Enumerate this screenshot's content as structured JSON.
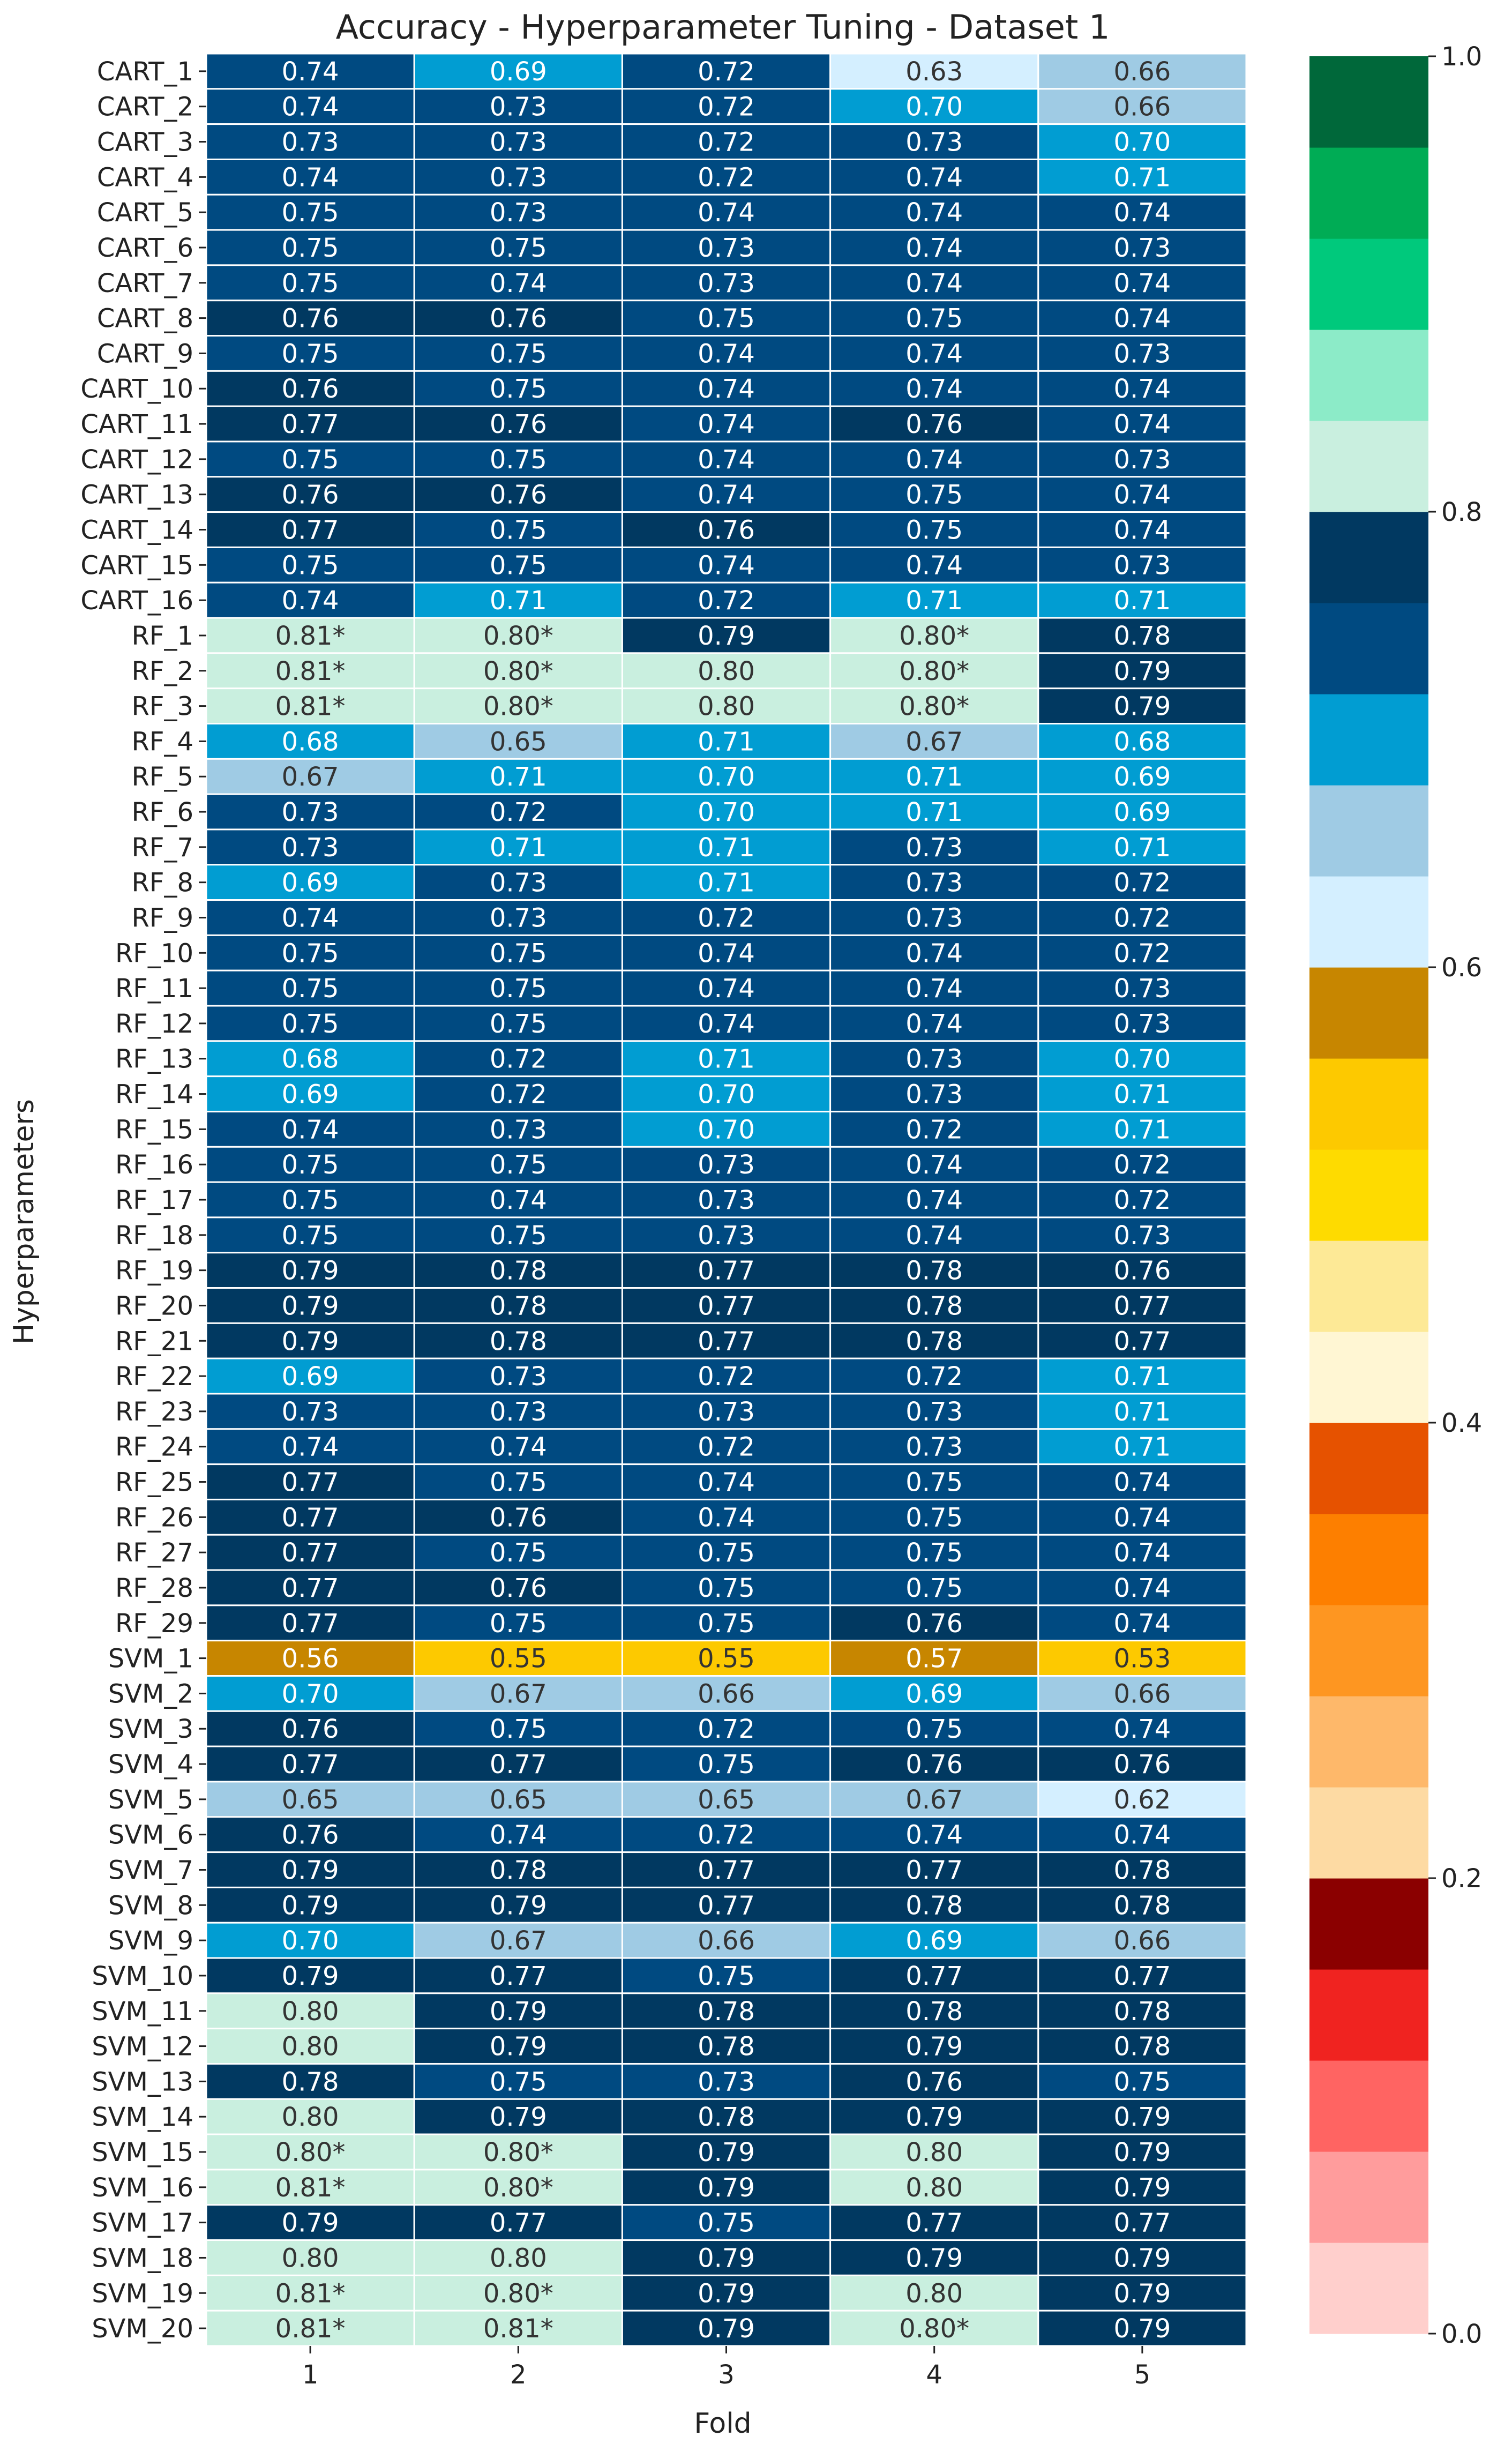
{
  "chart_data": {
    "type": "heatmap",
    "title": "Accuracy - Hyperparameter Tuning - Dataset 1",
    "xlabel": "Fold",
    "ylabel": "Hyperparameters",
    "columns": [
      "1",
      "2",
      "3",
      "4",
      "5"
    ],
    "rows": [
      "CART_1",
      "CART_2",
      "CART_3",
      "CART_4",
      "CART_5",
      "CART_6",
      "CART_7",
      "CART_8",
      "CART_9",
      "CART_10",
      "CART_11",
      "CART_12",
      "CART_13",
      "CART_14",
      "CART_15",
      "CART_16",
      "RF_1",
      "RF_2",
      "RF_3",
      "RF_4",
      "RF_5",
      "RF_6",
      "RF_7",
      "RF_8",
      "RF_9",
      "RF_10",
      "RF_11",
      "RF_12",
      "RF_13",
      "RF_14",
      "RF_15",
      "RF_16",
      "RF_17",
      "RF_18",
      "RF_19",
      "RF_20",
      "RF_21",
      "RF_22",
      "RF_23",
      "RF_24",
      "RF_25",
      "RF_26",
      "RF_27",
      "RF_28",
      "RF_29",
      "SVM_1",
      "SVM_2",
      "SVM_3",
      "SVM_4",
      "SVM_5",
      "SVM_6",
      "SVM_7",
      "SVM_8",
      "SVM_9",
      "SVM_10",
      "SVM_11",
      "SVM_12",
      "SVM_13",
      "SVM_14",
      "SVM_15",
      "SVM_16",
      "SVM_17",
      "SVM_18",
      "SVM_19",
      "SVM_20"
    ],
    "values": [
      [
        0.74,
        0.69,
        0.72,
        0.63,
        0.66
      ],
      [
        0.74,
        0.73,
        0.72,
        0.7,
        0.66
      ],
      [
        0.73,
        0.73,
        0.72,
        0.73,
        0.7
      ],
      [
        0.74,
        0.73,
        0.72,
        0.74,
        0.71
      ],
      [
        0.75,
        0.73,
        0.74,
        0.74,
        0.74
      ],
      [
        0.75,
        0.75,
        0.73,
        0.74,
        0.73
      ],
      [
        0.75,
        0.74,
        0.73,
        0.74,
        0.74
      ],
      [
        0.76,
        0.76,
        0.75,
        0.75,
        0.74
      ],
      [
        0.75,
        0.75,
        0.74,
        0.74,
        0.73
      ],
      [
        0.76,
        0.75,
        0.74,
        0.74,
        0.74
      ],
      [
        0.77,
        0.76,
        0.74,
        0.76,
        0.74
      ],
      [
        0.75,
        0.75,
        0.74,
        0.74,
        0.73
      ],
      [
        0.76,
        0.76,
        0.74,
        0.75,
        0.74
      ],
      [
        0.77,
        0.75,
        0.76,
        0.75,
        0.74
      ],
      [
        0.75,
        0.75,
        0.74,
        0.74,
        0.73
      ],
      [
        0.74,
        0.71,
        0.72,
        0.71,
        0.71
      ],
      [
        0.81,
        0.8,
        0.79,
        0.8,
        0.78
      ],
      [
        0.81,
        0.8,
        0.8,
        0.8,
        0.79
      ],
      [
        0.81,
        0.8,
        0.8,
        0.8,
        0.79
      ],
      [
        0.68,
        0.65,
        0.71,
        0.67,
        0.68
      ],
      [
        0.67,
        0.71,
        0.7,
        0.71,
        0.69
      ],
      [
        0.73,
        0.72,
        0.7,
        0.71,
        0.69
      ],
      [
        0.73,
        0.71,
        0.71,
        0.73,
        0.71
      ],
      [
        0.69,
        0.73,
        0.71,
        0.73,
        0.72
      ],
      [
        0.74,
        0.73,
        0.72,
        0.73,
        0.72
      ],
      [
        0.75,
        0.75,
        0.74,
        0.74,
        0.72
      ],
      [
        0.75,
        0.75,
        0.74,
        0.74,
        0.73
      ],
      [
        0.75,
        0.75,
        0.74,
        0.74,
        0.73
      ],
      [
        0.68,
        0.72,
        0.71,
        0.73,
        0.7
      ],
      [
        0.69,
        0.72,
        0.7,
        0.73,
        0.71
      ],
      [
        0.74,
        0.73,
        0.7,
        0.72,
        0.71
      ],
      [
        0.75,
        0.75,
        0.73,
        0.74,
        0.72
      ],
      [
        0.75,
        0.74,
        0.73,
        0.74,
        0.72
      ],
      [
        0.75,
        0.75,
        0.73,
        0.74,
        0.73
      ],
      [
        0.79,
        0.78,
        0.77,
        0.78,
        0.76
      ],
      [
        0.79,
        0.78,
        0.77,
        0.78,
        0.77
      ],
      [
        0.79,
        0.78,
        0.77,
        0.78,
        0.77
      ],
      [
        0.69,
        0.73,
        0.72,
        0.72,
        0.71
      ],
      [
        0.73,
        0.73,
        0.73,
        0.73,
        0.71
      ],
      [
        0.74,
        0.74,
        0.72,
        0.73,
        0.71
      ],
      [
        0.77,
        0.75,
        0.74,
        0.75,
        0.74
      ],
      [
        0.77,
        0.76,
        0.74,
        0.75,
        0.74
      ],
      [
        0.77,
        0.75,
        0.75,
        0.75,
        0.74
      ],
      [
        0.77,
        0.76,
        0.75,
        0.75,
        0.74
      ],
      [
        0.77,
        0.75,
        0.75,
        0.76,
        0.74
      ],
      [
        0.56,
        0.55,
        0.55,
        0.57,
        0.53
      ],
      [
        0.7,
        0.67,
        0.66,
        0.69,
        0.66
      ],
      [
        0.76,
        0.75,
        0.72,
        0.75,
        0.74
      ],
      [
        0.77,
        0.77,
        0.75,
        0.76,
        0.76
      ],
      [
        0.65,
        0.65,
        0.65,
        0.67,
        0.62
      ],
      [
        0.76,
        0.74,
        0.72,
        0.74,
        0.74
      ],
      [
        0.79,
        0.78,
        0.77,
        0.77,
        0.78
      ],
      [
        0.79,
        0.79,
        0.77,
        0.78,
        0.78
      ],
      [
        0.7,
        0.67,
        0.66,
        0.69,
        0.66
      ],
      [
        0.79,
        0.77,
        0.75,
        0.77,
        0.77
      ],
      [
        0.8,
        0.79,
        0.78,
        0.78,
        0.78
      ],
      [
        0.8,
        0.79,
        0.78,
        0.79,
        0.78
      ],
      [
        0.78,
        0.75,
        0.73,
        0.76,
        0.75
      ],
      [
        0.8,
        0.79,
        0.78,
        0.79,
        0.79
      ],
      [
        0.8,
        0.8,
        0.79,
        0.8,
        0.79
      ],
      [
        0.81,
        0.8,
        0.79,
        0.8,
        0.79
      ],
      [
        0.79,
        0.77,
        0.75,
        0.77,
        0.77
      ],
      [
        0.8,
        0.8,
        0.79,
        0.79,
        0.79
      ],
      [
        0.81,
        0.8,
        0.79,
        0.8,
        0.79
      ],
      [
        0.81,
        0.81,
        0.79,
        0.8,
        0.79
      ]
    ],
    "labels": [
      [
        "0.74",
        "0.69",
        "0.72",
        "0.63",
        "0.66"
      ],
      [
        "0.74",
        "0.73",
        "0.72",
        "0.70",
        "0.66"
      ],
      [
        "0.73",
        "0.73",
        "0.72",
        "0.73",
        "0.70"
      ],
      [
        "0.74",
        "0.73",
        "0.72",
        "0.74",
        "0.71"
      ],
      [
        "0.75",
        "0.73",
        "0.74",
        "0.74",
        "0.74"
      ],
      [
        "0.75",
        "0.75",
        "0.73",
        "0.74",
        "0.73"
      ],
      [
        "0.75",
        "0.74",
        "0.73",
        "0.74",
        "0.74"
      ],
      [
        "0.76",
        "0.76",
        "0.75",
        "0.75",
        "0.74"
      ],
      [
        "0.75",
        "0.75",
        "0.74",
        "0.74",
        "0.73"
      ],
      [
        "0.76",
        "0.75",
        "0.74",
        "0.74",
        "0.74"
      ],
      [
        "0.77",
        "0.76",
        "0.74",
        "0.76",
        "0.74"
      ],
      [
        "0.75",
        "0.75",
        "0.74",
        "0.74",
        "0.73"
      ],
      [
        "0.76",
        "0.76",
        "0.74",
        "0.75",
        "0.74"
      ],
      [
        "0.77",
        "0.75",
        "0.76",
        "0.75",
        "0.74"
      ],
      [
        "0.75",
        "0.75",
        "0.74",
        "0.74",
        "0.73"
      ],
      [
        "0.74",
        "0.71",
        "0.72",
        "0.71",
        "0.71"
      ],
      [
        "0.81*",
        "0.80*",
        "0.79",
        "0.80*",
        "0.78"
      ],
      [
        "0.81*",
        "0.80*",
        "0.80",
        "0.80*",
        "0.79"
      ],
      [
        "0.81*",
        "0.80*",
        "0.80",
        "0.80*",
        "0.79"
      ],
      [
        "0.68",
        "0.65",
        "0.71",
        "0.67",
        "0.68"
      ],
      [
        "0.67",
        "0.71",
        "0.70",
        "0.71",
        "0.69"
      ],
      [
        "0.73",
        "0.72",
        "0.70",
        "0.71",
        "0.69"
      ],
      [
        "0.73",
        "0.71",
        "0.71",
        "0.73",
        "0.71"
      ],
      [
        "0.69",
        "0.73",
        "0.71",
        "0.73",
        "0.72"
      ],
      [
        "0.74",
        "0.73",
        "0.72",
        "0.73",
        "0.72"
      ],
      [
        "0.75",
        "0.75",
        "0.74",
        "0.74",
        "0.72"
      ],
      [
        "0.75",
        "0.75",
        "0.74",
        "0.74",
        "0.73"
      ],
      [
        "0.75",
        "0.75",
        "0.74",
        "0.74",
        "0.73"
      ],
      [
        "0.68",
        "0.72",
        "0.71",
        "0.73",
        "0.70"
      ],
      [
        "0.69",
        "0.72",
        "0.70",
        "0.73",
        "0.71"
      ],
      [
        "0.74",
        "0.73",
        "0.70",
        "0.72",
        "0.71"
      ],
      [
        "0.75",
        "0.75",
        "0.73",
        "0.74",
        "0.72"
      ],
      [
        "0.75",
        "0.74",
        "0.73",
        "0.74",
        "0.72"
      ],
      [
        "0.75",
        "0.75",
        "0.73",
        "0.74",
        "0.73"
      ],
      [
        "0.79",
        "0.78",
        "0.77",
        "0.78",
        "0.76"
      ],
      [
        "0.79",
        "0.78",
        "0.77",
        "0.78",
        "0.77"
      ],
      [
        "0.79",
        "0.78",
        "0.77",
        "0.78",
        "0.77"
      ],
      [
        "0.69",
        "0.73",
        "0.72",
        "0.72",
        "0.71"
      ],
      [
        "0.73",
        "0.73",
        "0.73",
        "0.73",
        "0.71"
      ],
      [
        "0.74",
        "0.74",
        "0.72",
        "0.73",
        "0.71"
      ],
      [
        "0.77",
        "0.75",
        "0.74",
        "0.75",
        "0.74"
      ],
      [
        "0.77",
        "0.76",
        "0.74",
        "0.75",
        "0.74"
      ],
      [
        "0.77",
        "0.75",
        "0.75",
        "0.75",
        "0.74"
      ],
      [
        "0.77",
        "0.76",
        "0.75",
        "0.75",
        "0.74"
      ],
      [
        "0.77",
        "0.75",
        "0.75",
        "0.76",
        "0.74"
      ],
      [
        "0.56",
        "0.55",
        "0.55",
        "0.57",
        "0.53"
      ],
      [
        "0.70",
        "0.67",
        "0.66",
        "0.69",
        "0.66"
      ],
      [
        "0.76",
        "0.75",
        "0.72",
        "0.75",
        "0.74"
      ],
      [
        "0.77",
        "0.77",
        "0.75",
        "0.76",
        "0.76"
      ],
      [
        "0.65",
        "0.65",
        "0.65",
        "0.67",
        "0.62"
      ],
      [
        "0.76",
        "0.74",
        "0.72",
        "0.74",
        "0.74"
      ],
      [
        "0.79",
        "0.78",
        "0.77",
        "0.77",
        "0.78"
      ],
      [
        "0.79",
        "0.79",
        "0.77",
        "0.78",
        "0.78"
      ],
      [
        "0.70",
        "0.67",
        "0.66",
        "0.69",
        "0.66"
      ],
      [
        "0.79",
        "0.77",
        "0.75",
        "0.77",
        "0.77"
      ],
      [
        "0.80",
        "0.79",
        "0.78",
        "0.78",
        "0.78"
      ],
      [
        "0.80",
        "0.79",
        "0.78",
        "0.79",
        "0.78"
      ],
      [
        "0.78",
        "0.75",
        "0.73",
        "0.76",
        "0.75"
      ],
      [
        "0.80",
        "0.79",
        "0.78",
        "0.79",
        "0.79"
      ],
      [
        "0.80*",
        "0.80*",
        "0.79",
        "0.80",
        "0.79"
      ],
      [
        "0.81*",
        "0.80*",
        "0.79",
        "0.80",
        "0.79"
      ],
      [
        "0.79",
        "0.77",
        "0.75",
        "0.77",
        "0.77"
      ],
      [
        "0.80",
        "0.80",
        "0.79",
        "0.79",
        "0.79"
      ],
      [
        "0.81*",
        "0.80*",
        "0.79",
        "0.80",
        "0.79"
      ],
      [
        "0.81*",
        "0.81*",
        "0.79",
        "0.80*",
        "0.79"
      ]
    ],
    "colorbar": {
      "range": [
        0.0,
        1.0
      ],
      "ticks": [
        "0.0",
        "0.2",
        "0.4",
        "0.6",
        "0.8",
        "1.0"
      ],
      "tick_values": [
        0.0,
        0.2,
        0.4,
        0.6,
        0.8,
        1.0
      ],
      "colors": [
        "#ffcfcc",
        "#ff9c9c",
        "#ff6462",
        "#f02320",
        "#8b0000",
        "#fddaa3",
        "#feb86a",
        "#fe9621",
        "#fd7f00",
        "#e65200",
        "#fff6d3",
        "#fde996",
        "#fedb00",
        "#fdc900",
        "#c78600",
        "#d4efff",
        "#9fcbe4",
        "#019dd2",
        "#004a81",
        "#013961",
        "#c9efdf",
        "#8cebc8",
        "#00c97c",
        "#00ac55",
        "#00683a"
      ]
    },
    "colors": {
      "best_text": "#333333",
      "cell_text_dark": "#333333",
      "cell_text_light": "#ffffff",
      "grid": "#ffffff"
    }
  }
}
